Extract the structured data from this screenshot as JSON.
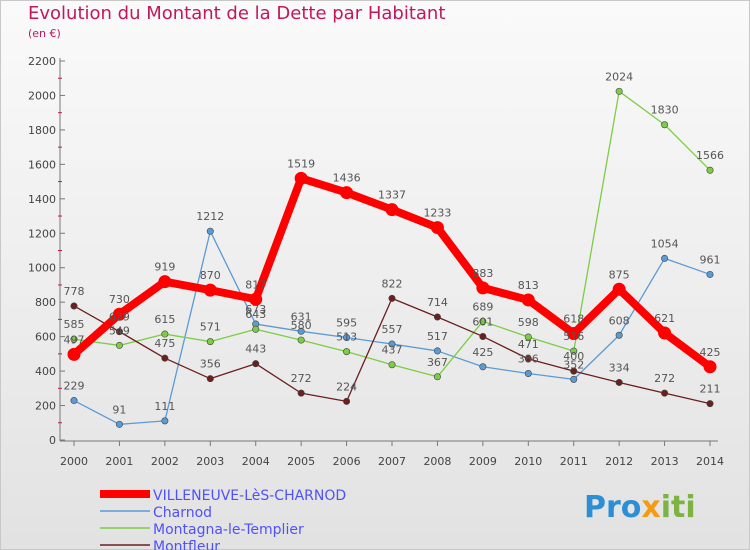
{
  "title": "Evolution du Montant de la Dette par Habitant",
  "subtitle": "(en €)",
  "logo": {
    "text": "Proxiti"
  },
  "chart_data": {
    "type": "line",
    "x": [
      "2000",
      "2001",
      "2002",
      "2003",
      "2004",
      "2005",
      "2006",
      "2007",
      "2008",
      "2009",
      "2010",
      "2011",
      "2012",
      "2013",
      "2014"
    ],
    "ylim": [
      0,
      2200
    ],
    "yticks": [
      0,
      200,
      400,
      600,
      800,
      1000,
      1200,
      1400,
      1600,
      1800,
      2000,
      2200
    ],
    "grid": false,
    "legend_position": "bottom-left",
    "series": [
      {
        "name": "VILLENEUVE-LèS-CHARNOD",
        "color": "#ff0000",
        "values": [
          497,
          730,
          919,
          870,
          817,
          1519,
          1436,
          1337,
          1233,
          883,
          813,
          618,
          875,
          621,
          425
        ]
      },
      {
        "name": "Charnod",
        "color": "#5b9bd5",
        "values": [
          229,
          91,
          111,
          1212,
          673,
          631,
          595,
          557,
          517,
          425,
          386,
          352,
          608,
          1054,
          961
        ]
      },
      {
        "name": "Montagna-le-Templier",
        "color": "#7ccd45",
        "values": [
          585,
          549,
          615,
          571,
          643,
          580,
          513,
          437,
          367,
          689,
          598,
          516,
          2024,
          1830,
          1566
        ]
      },
      {
        "name": "Montfleur",
        "color": "#6b1f1f",
        "values": [
          778,
          629,
          475,
          356,
          443,
          272,
          224,
          822,
          714,
          601,
          471,
          400,
          334,
          272,
          211
        ]
      }
    ]
  }
}
